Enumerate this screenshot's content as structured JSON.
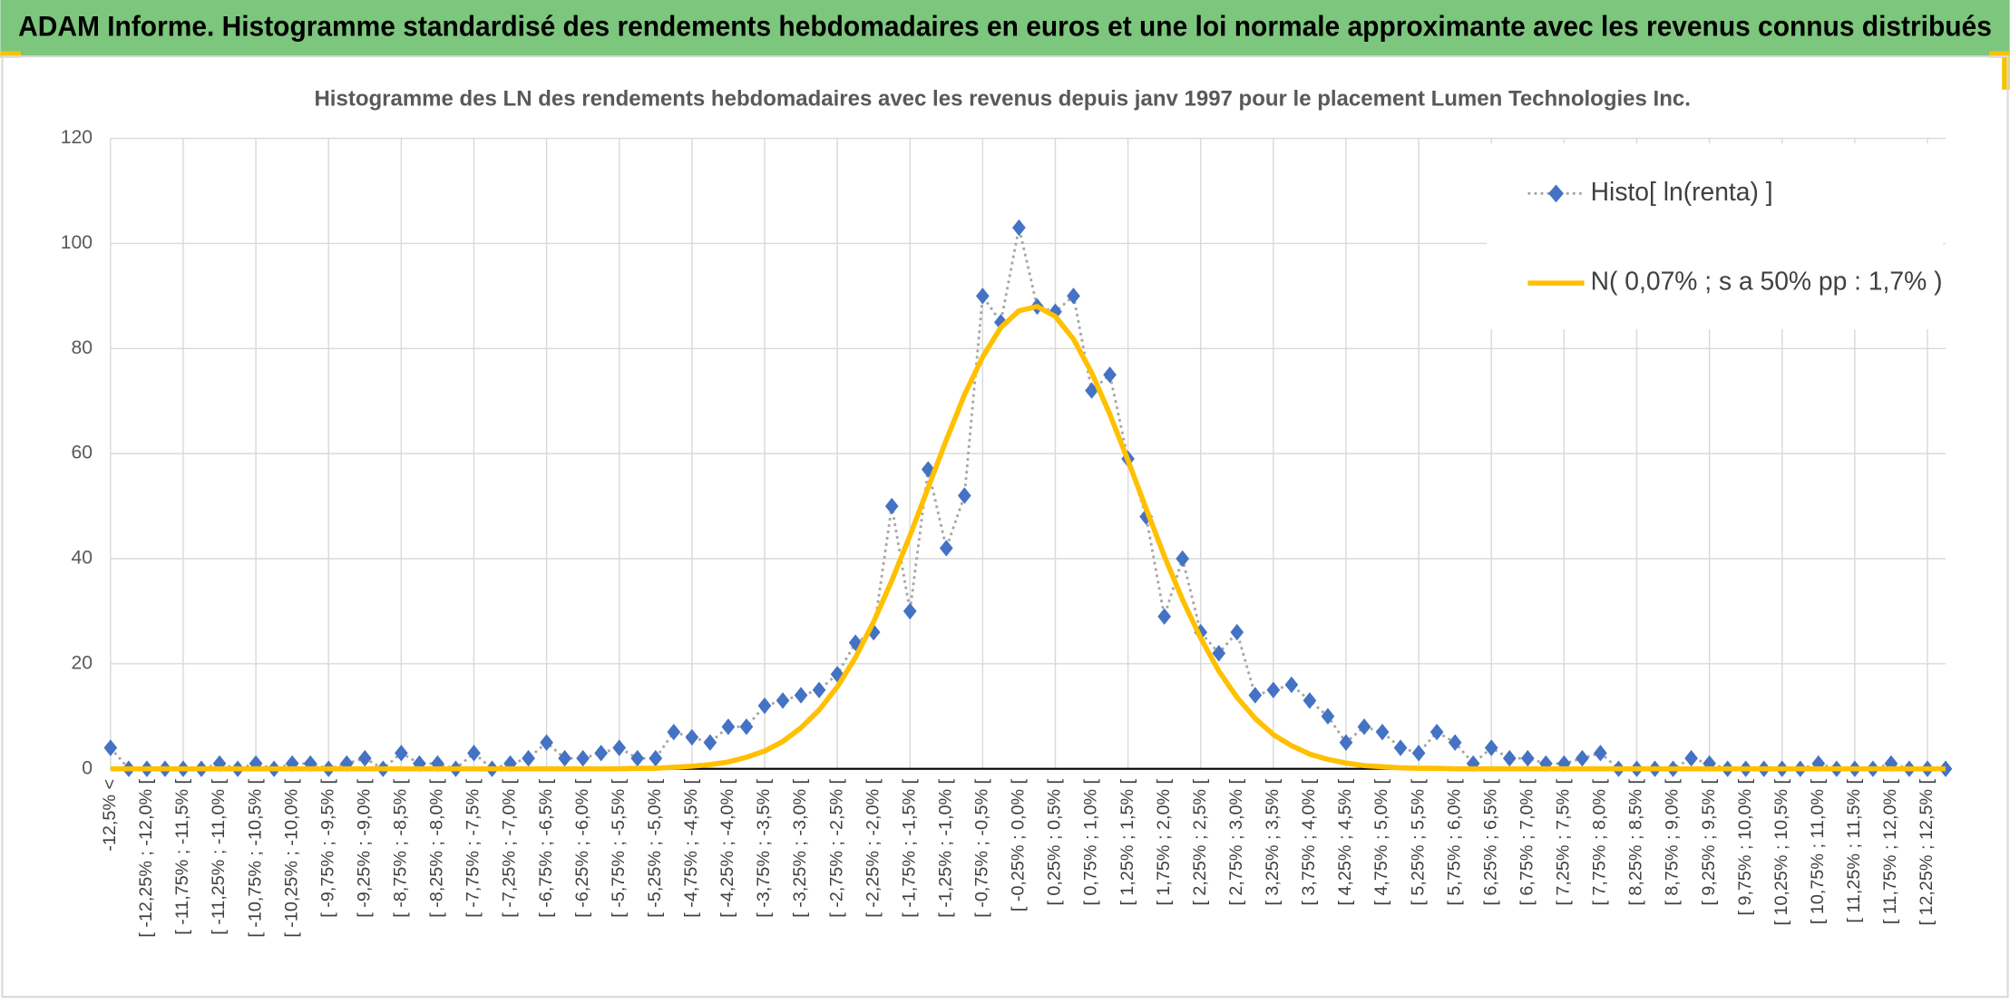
{
  "chart_data": {
    "type": "line",
    "title": "ADAM Informe. Histogramme standardisé des rendements hebdomadaires en euros et une loi normale approximante avec les revenus connus distribués",
    "subtitle": "Histogramme des LN des rendements hebdomadaires avec les revenus depuis janv 1997 pour le placement Lumen Technologies Inc.",
    "categories": [
      "-12,5% <",
      null,
      "[ -12,25% ; -12,0% [",
      null,
      "[ -11,75% ; -11,5% [",
      null,
      "[ -11,25% ; -11,0% [",
      null,
      "[ -10,75% ; -10,5% [",
      null,
      "[ -10,25% ; -10,0% [",
      null,
      "[ -9,75% ; -9,5% [",
      null,
      "[ -9,25% ; -9,0% [",
      null,
      "[ -8,75% ; -8,5% [",
      null,
      "[ -8,25% ; -8,0% [",
      null,
      "[ -7,75% ; -7,5% [",
      null,
      "[ -7,25% ; -7,0% [",
      null,
      "[ -6,75% ; -6,5% [",
      null,
      "[ -6,25% ; -6,0% [",
      null,
      "[ -5,75% ; -5,5% [",
      null,
      "[ -5,25% ; -5,0% [",
      null,
      "[ -4,75% ; -4,5% [",
      null,
      "[ -4,25% ; -4,0% [",
      null,
      "[ -3,75% ; -3,5% [",
      null,
      "[ -3,25% ; -3,0% [",
      null,
      "[ -2,75% ; -2,5% [",
      null,
      "[ -2,25% ; -2,0% [",
      null,
      "[ -1,75% ; -1,5% [",
      null,
      "[ -1,25% ; -1,0% [",
      null,
      "[ -0,75% ; -0,5% [",
      null,
      "[ -0,25% ; 0,0% [",
      null,
      "[ 0,25% ; 0,5% [",
      null,
      "[ 0,75% ; 1,0% [",
      null,
      "[ 1,25% ; 1,5% [",
      null,
      "[ 1,75% ; 2,0% [",
      null,
      "[ 2,25% ; 2,5% [",
      null,
      "[ 2,75% ; 3,0% [",
      null,
      "[ 3,25% ; 3,5% [",
      null,
      "[ 3,75% ; 4,0% [",
      null,
      "[ 4,25% ; 4,5% [",
      null,
      "[ 4,75% ; 5,0% [",
      null,
      "[ 5,25% ; 5,5% [",
      null,
      "[ 5,75% ; 6,0% [",
      null,
      "[ 6,25% ; 6,5% [",
      null,
      "[ 6,75% ; 7,0% [",
      null,
      "[ 7,25% ; 7,5% [",
      null,
      "[ 7,75% ; 8,0% [",
      null,
      "[ 8,25% ; 8,5% [",
      null,
      "[ 8,75% ; 9,0% [",
      null,
      "[ 9,25% ; 9,5% [",
      null,
      "[ 9,75% ; 10,0% [",
      null,
      "[ 10,25% ; 10,5% [",
      null,
      "[ 10,75% ; 11,0% [",
      null,
      "[ 11,25% ; 11,5% [",
      null,
      "[ 11,75% ; 12,0% [",
      null,
      "[ 12,25% ; 12,5% [",
      null
    ],
    "series": [
      {
        "name": "Histo[ ln(renta) ]",
        "color": "#4472c4",
        "line_color": "#a5a5a5",
        "line_style": "dotted",
        "marker": "diamond",
        "values": [
          4,
          0,
          0,
          0,
          0,
          0,
          1,
          0,
          1,
          0,
          1,
          1,
          0,
          1,
          2,
          0,
          3,
          1,
          1,
          0,
          3,
          0,
          1,
          2,
          5,
          2,
          2,
          3,
          4,
          2,
          2,
          7,
          6,
          5,
          8,
          8,
          12,
          13,
          14,
          15,
          18,
          24,
          26,
          50,
          30,
          57,
          42,
          52,
          90,
          85,
          103,
          88,
          87,
          90,
          72,
          75,
          59,
          48,
          29,
          40,
          26,
          22,
          26,
          14,
          15,
          16,
          13,
          10,
          5,
          8,
          7,
          4,
          3,
          7,
          5,
          1,
          4,
          2,
          2,
          1,
          1,
          2,
          3,
          0,
          0,
          0,
          0,
          2,
          1,
          0,
          0,
          0,
          0,
          0,
          1,
          0,
          0,
          0,
          1,
          0,
          0,
          0
        ]
      },
      {
        "name": "N( 0,07% ; s a 50% pp : 1,7% )",
        "color": "#ffc000",
        "line_style": "solid",
        "marker": "none",
        "values": [
          0,
          0,
          0,
          0,
          0,
          0,
          0,
          0,
          0,
          0,
          0,
          0,
          0,
          0,
          0,
          0,
          0,
          0,
          0,
          0,
          0,
          0,
          0,
          0,
          0,
          0,
          0,
          0,
          0,
          0.1,
          0.1,
          0.3,
          0.5,
          0.8,
          1.3,
          2.2,
          3.4,
          5.2,
          7.8,
          11.2,
          15.6,
          21.2,
          28.0,
          35.8,
          44.4,
          53.5,
          62.6,
          71.2,
          78.4,
          84.0,
          87.2,
          88.0,
          86.1,
          81.8,
          75.4,
          67.5,
          58.7,
          49.5,
          40.5,
          32.2,
          24.9,
          18.6,
          13.6,
          9.6,
          6.5,
          4.4,
          2.8,
          1.8,
          1.1,
          0.6,
          0.4,
          0.2,
          0.1,
          0.1,
          0,
          0,
          0,
          0,
          0,
          0,
          0,
          0,
          0,
          0,
          0,
          0,
          0,
          0,
          0,
          0,
          0,
          0,
          0,
          0,
          0,
          0,
          0,
          0,
          0,
          0,
          0,
          0
        ]
      }
    ],
    "ylim": [
      0,
      120
    ],
    "yticks": [
      0,
      20,
      40,
      60,
      80,
      100,
      120
    ],
    "grid": true,
    "legend": "top-right"
  }
}
